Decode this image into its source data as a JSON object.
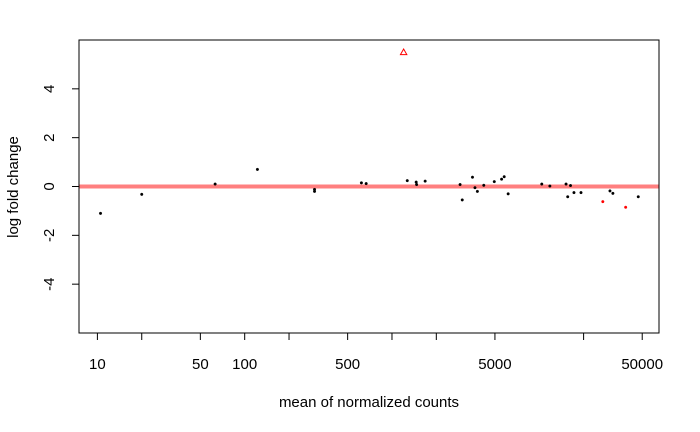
{
  "chart_data": {
    "type": "scatter",
    "title": "",
    "xlabel": "mean of normalized counts",
    "ylabel": "log fold change",
    "x_scale": "log",
    "xlim": [
      7.5,
      65000
    ],
    "ylim": [
      -6,
      6
    ],
    "x_ticks": [
      10,
      20,
      50,
      100,
      200,
      500,
      1000,
      2000,
      5000,
      20000,
      50000
    ],
    "x_tick_labels": [
      "10",
      "",
      "50",
      "100",
      "",
      "500",
      "",
      "",
      "5000",
      "",
      "50000"
    ],
    "y_ticks": [
      -4,
      -2,
      0,
      2,
      4
    ],
    "y_tick_labels": [
      "-4",
      "-2",
      "0",
      "2",
      "4"
    ],
    "reference_line": {
      "y": 0,
      "color": "#ff7f7f"
    },
    "grid": false,
    "colors": {
      "not_significant": "#000000",
      "significant": "#ff0000"
    },
    "points": [
      {
        "x": 10.5,
        "y": -1.1,
        "sig": false
      },
      {
        "x": 20,
        "y": -0.32,
        "sig": false
      },
      {
        "x": 63,
        "y": 0.1,
        "sig": false
      },
      {
        "x": 122,
        "y": 0.7,
        "sig": false
      },
      {
        "x": 298,
        "y": -0.12,
        "sig": false
      },
      {
        "x": 298,
        "y": -0.2,
        "sig": false
      },
      {
        "x": 620,
        "y": 0.15,
        "sig": false
      },
      {
        "x": 668,
        "y": 0.12,
        "sig": false
      },
      {
        "x": 1270,
        "y": 0.24,
        "sig": false
      },
      {
        "x": 1460,
        "y": 0.18,
        "sig": false
      },
      {
        "x": 1470,
        "y": 0.08,
        "sig": false
      },
      {
        "x": 1680,
        "y": 0.22,
        "sig": false
      },
      {
        "x": 2900,
        "y": 0.08,
        "sig": false
      },
      {
        "x": 3000,
        "y": -0.55,
        "sig": false
      },
      {
        "x": 3520,
        "y": 0.38,
        "sig": false
      },
      {
        "x": 3660,
        "y": -0.05,
        "sig": false
      },
      {
        "x": 3800,
        "y": -0.2,
        "sig": false
      },
      {
        "x": 4200,
        "y": 0.05,
        "sig": false
      },
      {
        "x": 4950,
        "y": 0.2,
        "sig": false
      },
      {
        "x": 5550,
        "y": 0.3,
        "sig": false
      },
      {
        "x": 5780,
        "y": 0.4,
        "sig": false
      },
      {
        "x": 6150,
        "y": -0.3,
        "sig": false
      },
      {
        "x": 10400,
        "y": 0.1,
        "sig": false
      },
      {
        "x": 11800,
        "y": 0.02,
        "sig": false
      },
      {
        "x": 15200,
        "y": 0.1,
        "sig": false
      },
      {
        "x": 15600,
        "y": -0.42,
        "sig": false
      },
      {
        "x": 16300,
        "y": 0.04,
        "sig": false
      },
      {
        "x": 17200,
        "y": -0.25,
        "sig": false
      },
      {
        "x": 19200,
        "y": -0.25,
        "sig": false
      },
      {
        "x": 27000,
        "y": -0.62,
        "sig": true
      },
      {
        "x": 30200,
        "y": -0.18,
        "sig": false
      },
      {
        "x": 31600,
        "y": -0.28,
        "sig": false
      },
      {
        "x": 38600,
        "y": -0.85,
        "sig": true
      },
      {
        "x": 47000,
        "y": -0.42,
        "sig": false
      }
    ],
    "outliers": [
      {
        "x": 1200,
        "y": 5.5,
        "sig": true,
        "marker": "triangle"
      }
    ]
  }
}
